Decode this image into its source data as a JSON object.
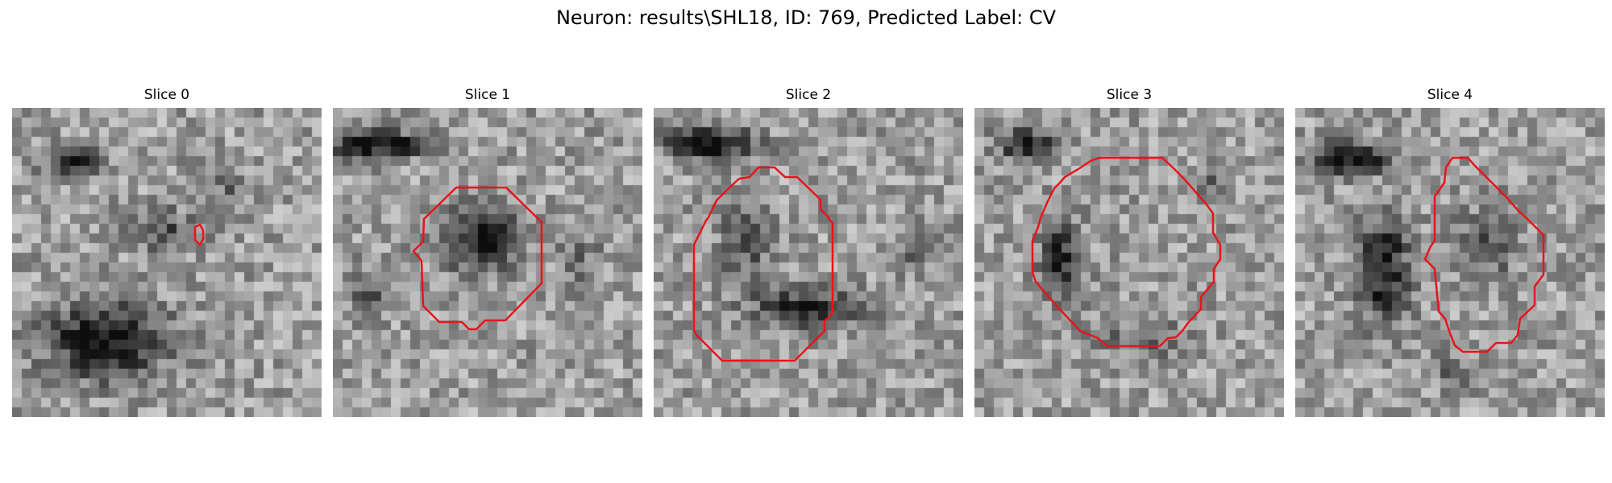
{
  "figure": {
    "title": "Neuron: results\\SHL18, ID: 769, Predicted Label: CV"
  },
  "panels": [
    {
      "title": "Slice 0"
    },
    {
      "title": "Slice 1"
    },
    {
      "title": "Slice 2"
    },
    {
      "title": "Slice 3"
    },
    {
      "title": "Slice 4"
    }
  ],
  "style": {
    "contour_color": "#e8141b",
    "colormap": "grayscale"
  }
}
